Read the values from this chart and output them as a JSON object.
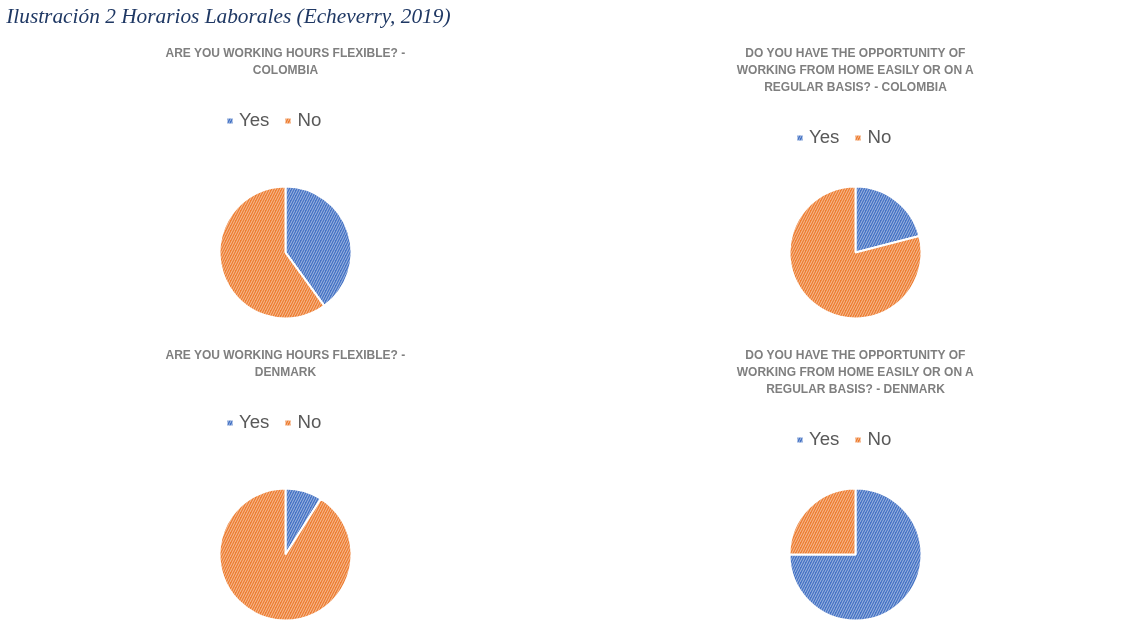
{
  "chart_data": [
    {
      "type": "pie",
      "title": "ARE YOU WORKING HOURS FLEXIBLE? - COLOMBIA",
      "categories": [
        "Yes",
        "No"
      ],
      "values": [
        40,
        60
      ],
      "colors": [
        "#4472c4",
        "#ed7d31"
      ],
      "legend": "top",
      "annotations": [
        "Ilustración 2 Horarios Laborales (Echeverry, 2019)"
      ]
    },
    {
      "type": "pie",
      "title": "DO YOU HAVE THE OPPORTUNITY OF WORKING FROM HOME EASILY OR ON A REGULAR BASIS? - COLOMBIA",
      "categories": [
        "Yes",
        "No"
      ],
      "values": [
        21,
        79
      ],
      "colors": [
        "#4472c4",
        "#ed7d31"
      ],
      "legend": "top"
    },
    {
      "type": "pie",
      "title": "ARE YOU WORKING HOURS FLEXIBLE? - DENMARK",
      "categories": [
        "Yes",
        "No"
      ],
      "values": [
        9,
        91
      ],
      "colors": [
        "#4472c4",
        "#ed7d31"
      ],
      "legend": "top"
    },
    {
      "type": "pie",
      "title": "DO YOU HAVE THE OPPORTUNITY OF WORKING FROM HOME EASILY OR ON A REGULAR BASIS? - DENMARK",
      "categories": [
        "Yes",
        "No"
      ],
      "values": [
        75,
        25
      ],
      "colors": [
        "#4472c4",
        "#ed7d31"
      ],
      "legend": "top"
    }
  ]
}
